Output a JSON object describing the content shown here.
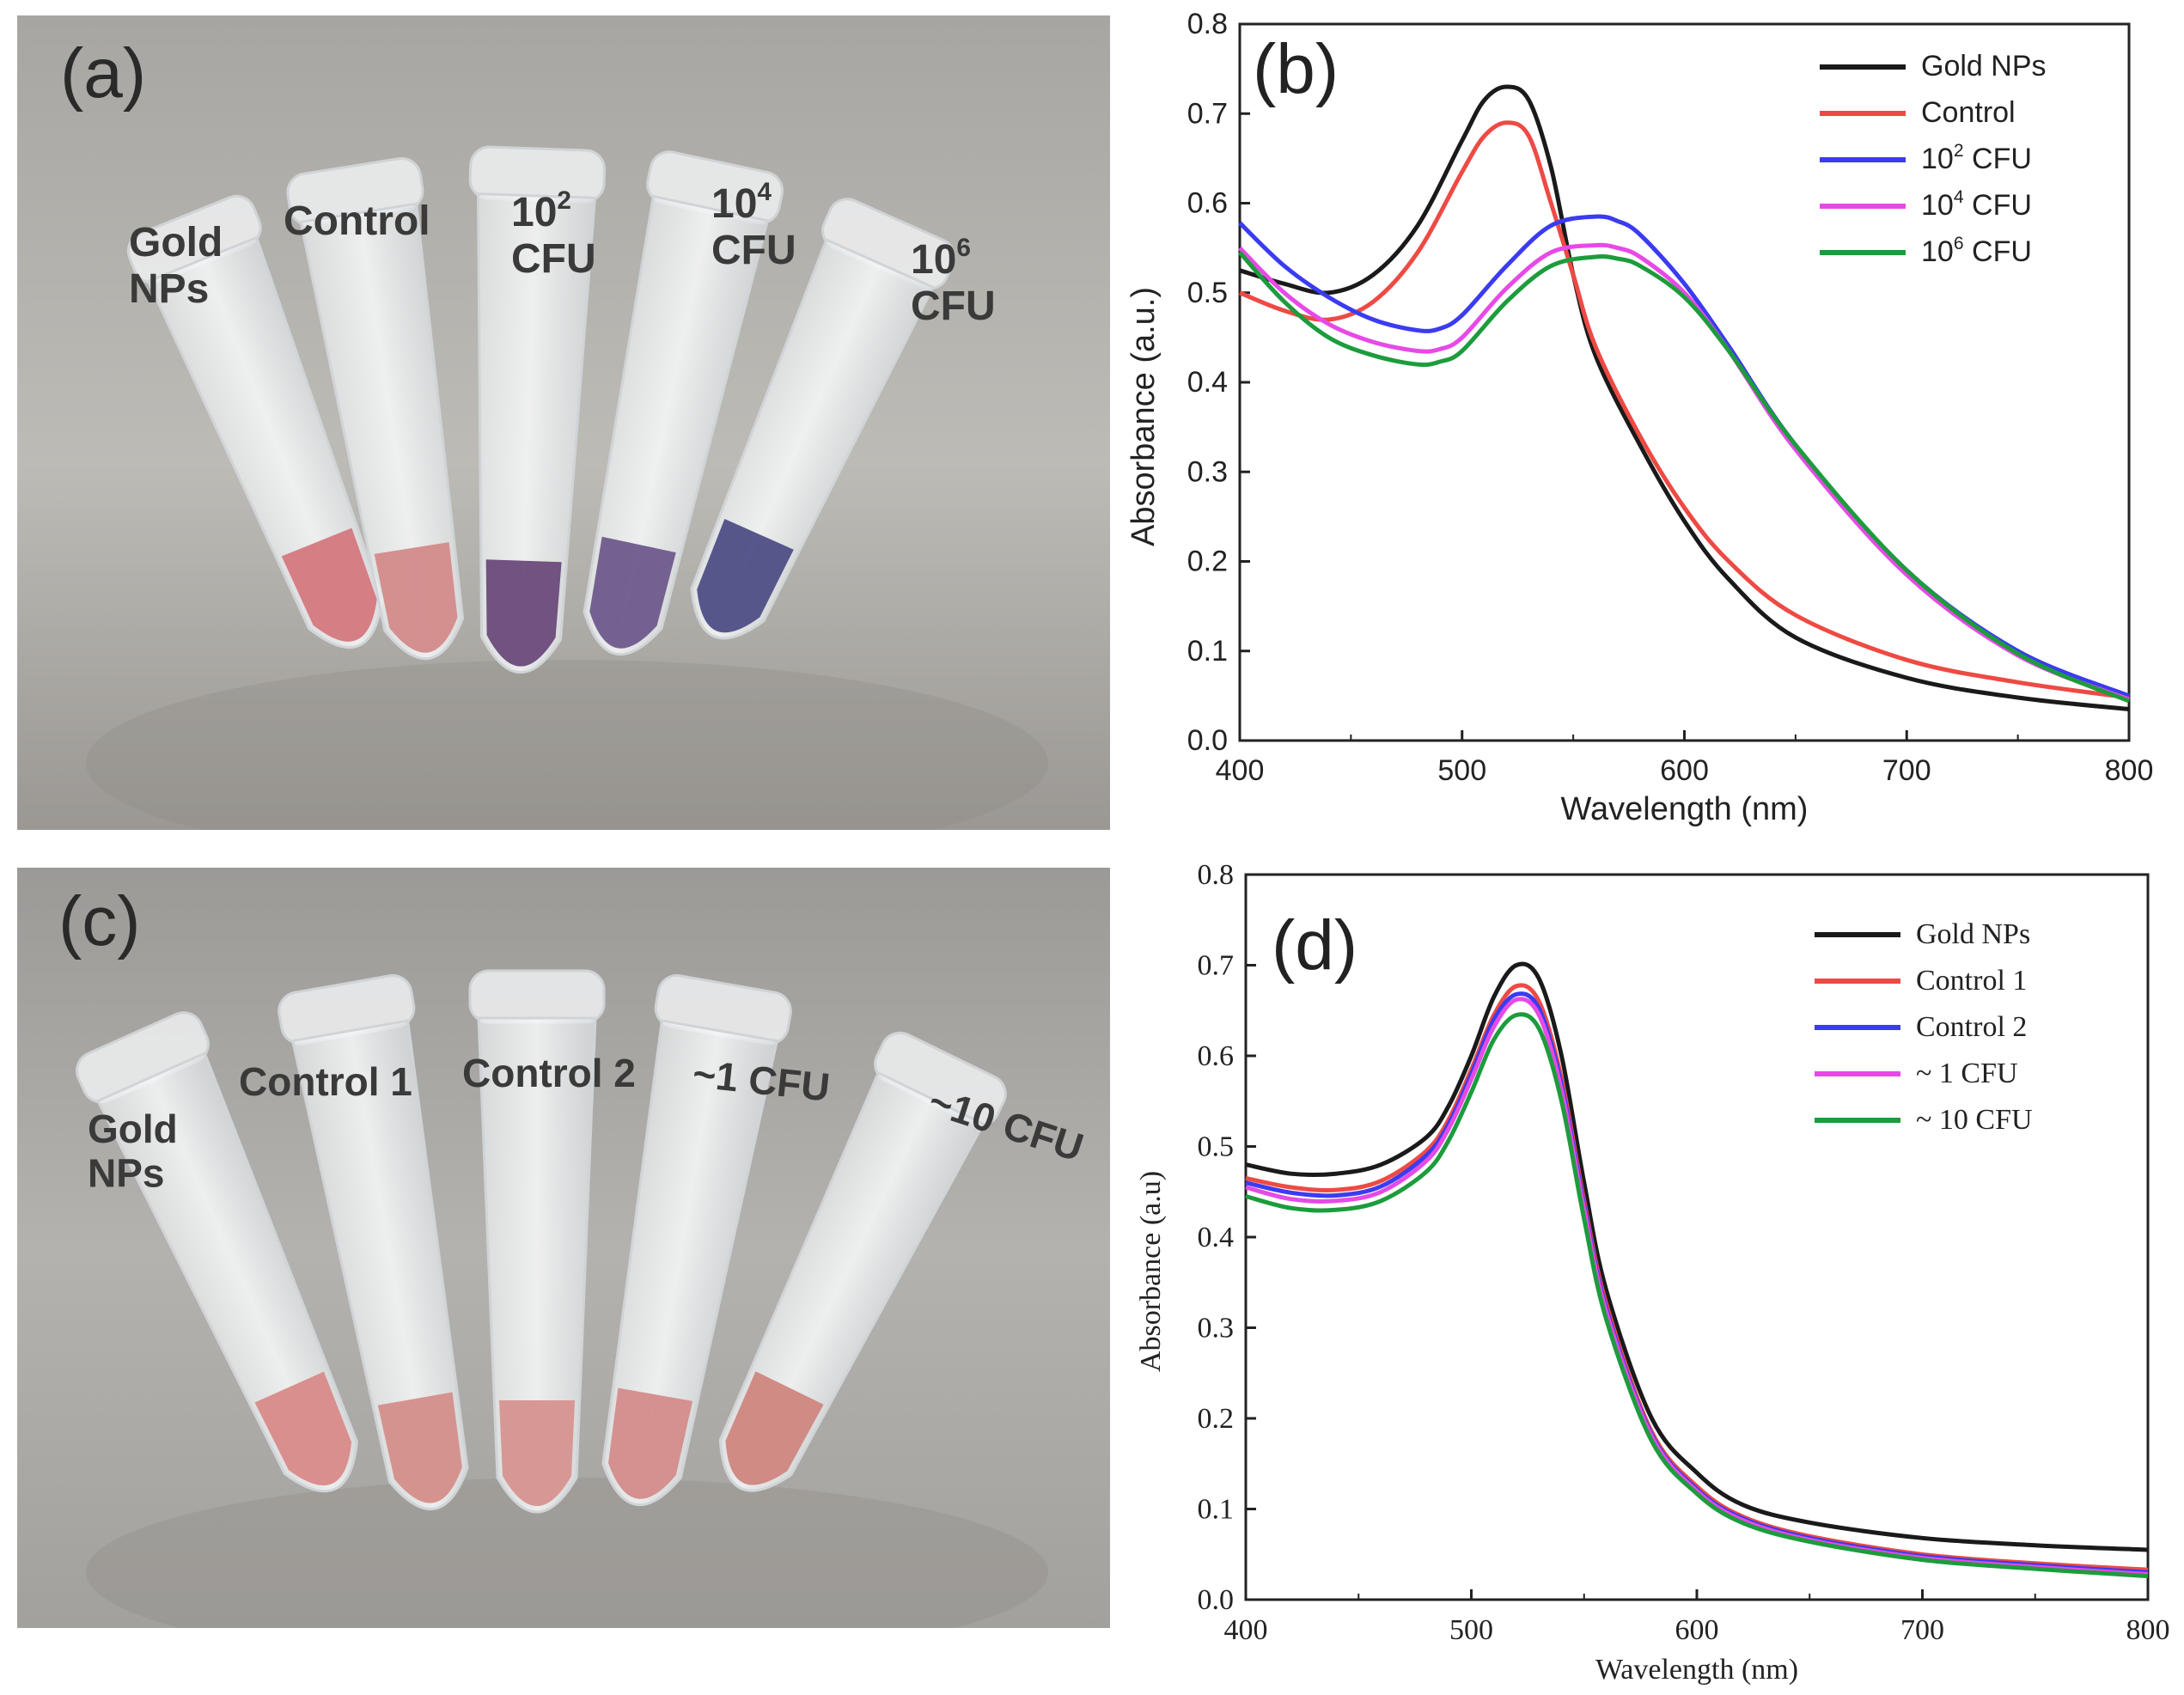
{
  "panels": {
    "a": {
      "panel_label": "(a)",
      "tubes": [
        {
          "line1": "Gold",
          "line2": "NPs",
          "sup": ""
        },
        {
          "line1": "Control",
          "line2": "",
          "sup": ""
        },
        {
          "line1": "10",
          "line2": "CFU",
          "sup": "2"
        },
        {
          "line1": "10",
          "line2": "CFU",
          "sup": "4"
        },
        {
          "line1": "10",
          "line2": "CFU",
          "sup": "6"
        }
      ],
      "liquid_colors": [
        "#d4787e",
        "#d38a8a",
        "#6a4a7a",
        "#6e5a8c",
        "#4e4e86"
      ]
    },
    "c": {
      "panel_label": "(c)",
      "tubes": [
        {
          "line1": "Gold",
          "line2": "NPs"
        },
        {
          "line1": "Control 1",
          "line2": ""
        },
        {
          "line1": "Control 2",
          "line2": ""
        },
        {
          "line1": "~1 CFU",
          "line2": ""
        },
        {
          "line1": "~10 CFU",
          "line2": ""
        }
      ],
      "liquid_colors": [
        "#d88a88",
        "#d48e8a",
        "#d69290",
        "#d38c8a",
        "#cf8680"
      ]
    }
  },
  "chart_data": [
    {
      "panel_label": "(b)",
      "type": "line",
      "xlabel": "Wavelength (nm)",
      "ylabel": "Absorbance (a.u.)",
      "xlim": [
        400,
        800
      ],
      "ylim": [
        0.0,
        0.8
      ],
      "xticks": [
        "400",
        "500",
        "600",
        "700",
        "800"
      ],
      "yticks": [
        "0.0",
        "0.1",
        "0.2",
        "0.3",
        "0.4",
        "0.5",
        "0.6",
        "0.7",
        "0.8"
      ],
      "legend_position": "top-right",
      "series": [
        {
          "name": "Gold NPs",
          "base": "",
          "sup": "",
          "unit": "",
          "color": "#1a1a1a",
          "x": [
            400,
            420,
            440,
            460,
            480,
            500,
            510,
            520,
            530,
            540,
            550,
            560,
            580,
            600,
            620,
            650,
            700,
            750,
            800
          ],
          "y": [
            0.525,
            0.51,
            0.5,
            0.52,
            0.575,
            0.67,
            0.715,
            0.73,
            0.715,
            0.64,
            0.52,
            0.43,
            0.33,
            0.245,
            0.18,
            0.115,
            0.07,
            0.048,
            0.035
          ]
        },
        {
          "name": "",
          "base": "Control",
          "sup": "",
          "unit": "",
          "color": "#ee4a44",
          "x": [
            400,
            420,
            440,
            460,
            480,
            500,
            510,
            520,
            530,
            540,
            550,
            560,
            580,
            600,
            620,
            650,
            700,
            750,
            800
          ],
          "y": [
            0.5,
            0.48,
            0.47,
            0.49,
            0.545,
            0.635,
            0.675,
            0.69,
            0.675,
            0.6,
            0.52,
            0.44,
            0.34,
            0.26,
            0.2,
            0.14,
            0.09,
            0.065,
            0.048
          ]
        },
        {
          "name": "",
          "base": "10",
          "sup": "2",
          "unit": " CFU",
          "color": "#3b3bf0",
          "x": [
            400,
            420,
            440,
            460,
            480,
            490,
            500,
            520,
            540,
            560,
            570,
            580,
            600,
            620,
            650,
            700,
            750,
            800
          ],
          "y": [
            0.578,
            0.53,
            0.495,
            0.47,
            0.458,
            0.46,
            0.475,
            0.53,
            0.575,
            0.585,
            0.58,
            0.565,
            0.51,
            0.44,
            0.33,
            0.19,
            0.1,
            0.05
          ]
        },
        {
          "name": "",
          "base": "10",
          "sup": "4",
          "unit": " CFU",
          "color": "#e64ae6",
          "x": [
            400,
            420,
            440,
            460,
            480,
            490,
            500,
            520,
            540,
            560,
            570,
            580,
            600,
            620,
            650,
            700,
            750,
            800
          ],
          "y": [
            0.55,
            0.5,
            0.465,
            0.445,
            0.435,
            0.437,
            0.45,
            0.505,
            0.545,
            0.553,
            0.55,
            0.54,
            0.5,
            0.435,
            0.325,
            0.185,
            0.095,
            0.046
          ]
        },
        {
          "name": "",
          "base": "10",
          "sup": "6",
          "unit": " CFU",
          "color": "#1c9c3c",
          "x": [
            400,
            420,
            440,
            460,
            480,
            490,
            500,
            520,
            540,
            560,
            570,
            580,
            600,
            620,
            650,
            700,
            750,
            800
          ],
          "y": [
            0.545,
            0.49,
            0.45,
            0.43,
            0.42,
            0.423,
            0.435,
            0.49,
            0.53,
            0.54,
            0.538,
            0.53,
            0.495,
            0.435,
            0.33,
            0.19,
            0.097,
            0.044
          ]
        }
      ]
    },
    {
      "panel_label": "(d)",
      "type": "line",
      "xlabel": "Wavelength (nm)",
      "ylabel": "Absorbance (a.u)",
      "xlim": [
        400,
        800
      ],
      "ylim": [
        0.0,
        0.8
      ],
      "xticks": [
        "400",
        "500",
        "600",
        "700",
        "800"
      ],
      "yticks": [
        "0.0",
        "0.1",
        "0.2",
        "0.3",
        "0.4",
        "0.5",
        "0.6",
        "0.7",
        "0.8"
      ],
      "legend_position": "top-right",
      "series": [
        {
          "name": "Gold NPs",
          "color": "#1a1a1a",
          "x": [
            400,
            420,
            440,
            460,
            480,
            490,
            500,
            510,
            520,
            530,
            540,
            550,
            560,
            580,
            600,
            620,
            650,
            700,
            750,
            800
          ],
          "y": [
            0.48,
            0.47,
            0.47,
            0.48,
            0.51,
            0.545,
            0.6,
            0.665,
            0.7,
            0.685,
            0.6,
            0.46,
            0.34,
            0.2,
            0.14,
            0.105,
            0.085,
            0.068,
            0.06,
            0.055
          ]
        },
        {
          "name": "Control 1",
          "color": "#ee4a44",
          "x": [
            400,
            420,
            440,
            460,
            480,
            490,
            500,
            510,
            520,
            530,
            540,
            550,
            560,
            580,
            600,
            620,
            650,
            700,
            750,
            800
          ],
          "y": [
            0.465,
            0.455,
            0.452,
            0.462,
            0.495,
            0.53,
            0.585,
            0.645,
            0.677,
            0.66,
            0.575,
            0.44,
            0.325,
            0.185,
            0.125,
            0.092,
            0.07,
            0.05,
            0.04,
            0.033
          ]
        },
        {
          "name": "Control 2",
          "color": "#3b3bf0",
          "x": [
            400,
            420,
            440,
            460,
            480,
            490,
            500,
            510,
            520,
            530,
            540,
            550,
            560,
            580,
            600,
            620,
            650,
            700,
            750,
            800
          ],
          "y": [
            0.46,
            0.449,
            0.446,
            0.456,
            0.49,
            0.525,
            0.58,
            0.64,
            0.668,
            0.652,
            0.568,
            0.435,
            0.32,
            0.182,
            0.122,
            0.09,
            0.068,
            0.048,
            0.038,
            0.03
          ]
        },
        {
          "name": "~ 1 CFU",
          "color": "#e64ae6",
          "x": [
            400,
            420,
            440,
            460,
            480,
            490,
            500,
            510,
            520,
            530,
            540,
            550,
            560,
            580,
            600,
            620,
            650,
            700,
            750,
            800
          ],
          "y": [
            0.455,
            0.442,
            0.44,
            0.45,
            0.484,
            0.52,
            0.574,
            0.632,
            0.662,
            0.645,
            0.562,
            0.43,
            0.316,
            0.18,
            0.12,
            0.088,
            0.066,
            0.046,
            0.036,
            0.028
          ]
        },
        {
          "name": "~ 10 CFU",
          "color": "#1c9c3c",
          "x": [
            400,
            420,
            440,
            460,
            480,
            490,
            500,
            510,
            520,
            530,
            540,
            550,
            560,
            580,
            600,
            620,
            650,
            700,
            750,
            800
          ],
          "y": [
            0.445,
            0.432,
            0.43,
            0.44,
            0.472,
            0.507,
            0.56,
            0.618,
            0.645,
            0.63,
            0.55,
            0.42,
            0.308,
            0.175,
            0.117,
            0.085,
            0.064,
            0.044,
            0.034,
            0.026
          ]
        }
      ]
    }
  ]
}
